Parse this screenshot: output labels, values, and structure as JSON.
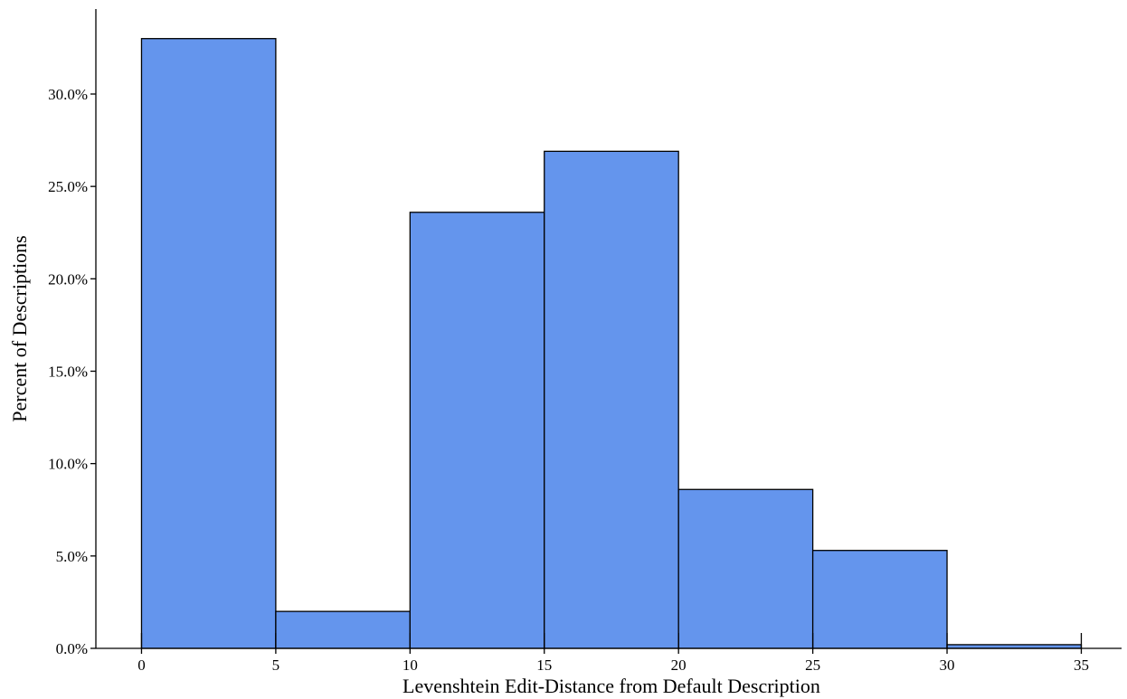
{
  "chart_data": {
    "type": "bar",
    "bins": [
      {
        "start": 0,
        "end": 5,
        "value": 33.0
      },
      {
        "start": 5,
        "end": 10,
        "value": 2.0
      },
      {
        "start": 10,
        "end": 15,
        "value": 23.6
      },
      {
        "start": 15,
        "end": 20,
        "value": 26.9
      },
      {
        "start": 20,
        "end": 25,
        "value": 8.6
      },
      {
        "start": 25,
        "end": 30,
        "value": 5.3
      },
      {
        "start": 30,
        "end": 35,
        "value": 0.2
      }
    ],
    "xlabel": "Levenshtein Edit-Distance from Default Description",
    "ylabel": "Percent of Descriptions",
    "x_ticks": [
      0,
      5,
      10,
      15,
      20,
      25,
      30,
      35
    ],
    "x_tick_labels": [
      "0",
      "5",
      "10",
      "15",
      "20",
      "25",
      "30",
      "35"
    ],
    "y_ticks": [
      0,
      5,
      10,
      15,
      20,
      25,
      30
    ],
    "y_tick_labels": [
      "0.0%",
      "5.0%",
      "10.0%",
      "15.0%",
      "20.0%",
      "25.0%",
      "30.0%"
    ],
    "xlim": [
      -1.7,
      36.5
    ],
    "ylim": [
      0,
      34.6
    ],
    "grid": false,
    "legend": "none"
  }
}
